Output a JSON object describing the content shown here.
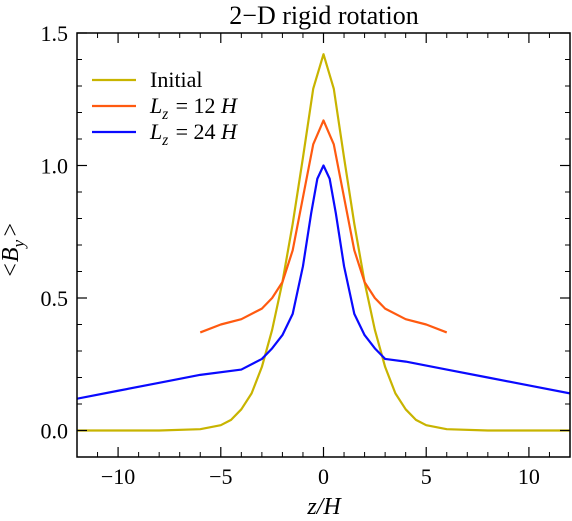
{
  "chart_data": {
    "type": "line",
    "title": "2−D rigid rotation",
    "xlabel": "z/H",
    "ylabel": "<B_y>",
    "xlim": [
      -12,
      12
    ],
    "ylim": [
      -0.1,
      1.5
    ],
    "xticks": [
      -10,
      -5,
      0,
      5,
      10
    ],
    "xtick_labels": [
      "−10",
      "−5",
      "0",
      "5",
      "10"
    ],
    "yticks": [
      0.0,
      0.5,
      1.0,
      1.5
    ],
    "ytick_labels": [
      "0.0",
      "0.5",
      "1.0",
      "1.5"
    ],
    "grid": false,
    "legend_position": "top-left",
    "series": [
      {
        "name": "Initial",
        "color": "#c8b400",
        "x": [
          -12,
          -8,
          -6,
          -5,
          -4.5,
          -4,
          -3.5,
          -3,
          -2.5,
          -2,
          -1.5,
          -1,
          -0.5,
          0,
          0.5,
          1,
          1.5,
          2,
          2.5,
          3,
          3.5,
          4,
          4.5,
          5,
          6,
          8,
          12
        ],
        "y": [
          0.0,
          0.0,
          0.005,
          0.02,
          0.04,
          0.08,
          0.14,
          0.24,
          0.38,
          0.56,
          0.78,
          1.03,
          1.29,
          1.42,
          1.29,
          1.03,
          0.78,
          0.56,
          0.38,
          0.24,
          0.14,
          0.08,
          0.04,
          0.02,
          0.005,
          0.0,
          0.0
        ]
      },
      {
        "name": "L_z = 12 H",
        "color": "#ff5a10",
        "x": [
          -6,
          -5,
          -4,
          -3,
          -2.5,
          -2,
          -1.5,
          -1,
          -0.5,
          0,
          0.5,
          1,
          1.5,
          2,
          2.5,
          3,
          4,
          5,
          6
        ],
        "y": [
          0.37,
          0.4,
          0.42,
          0.46,
          0.5,
          0.56,
          0.68,
          0.88,
          1.08,
          1.17,
          1.08,
          0.88,
          0.68,
          0.56,
          0.5,
          0.46,
          0.42,
          0.4,
          0.37
        ]
      },
      {
        "name": "L_z = 24 H",
        "color": "#0a0aff",
        "x": [
          -12,
          -10,
          -8,
          -6,
          -4,
          -3,
          -2.5,
          -2,
          -1.5,
          -1,
          -0.6,
          -0.3,
          0,
          0.3,
          0.6,
          1,
          1.5,
          2,
          2.5,
          3,
          4,
          6,
          8,
          10,
          12
        ],
        "y": [
          0.12,
          0.15,
          0.18,
          0.21,
          0.23,
          0.27,
          0.31,
          0.36,
          0.44,
          0.62,
          0.82,
          0.95,
          1.0,
          0.95,
          0.82,
          0.62,
          0.44,
          0.36,
          0.31,
          0.27,
          0.26,
          0.23,
          0.2,
          0.17,
          0.14
        ]
      }
    ]
  }
}
